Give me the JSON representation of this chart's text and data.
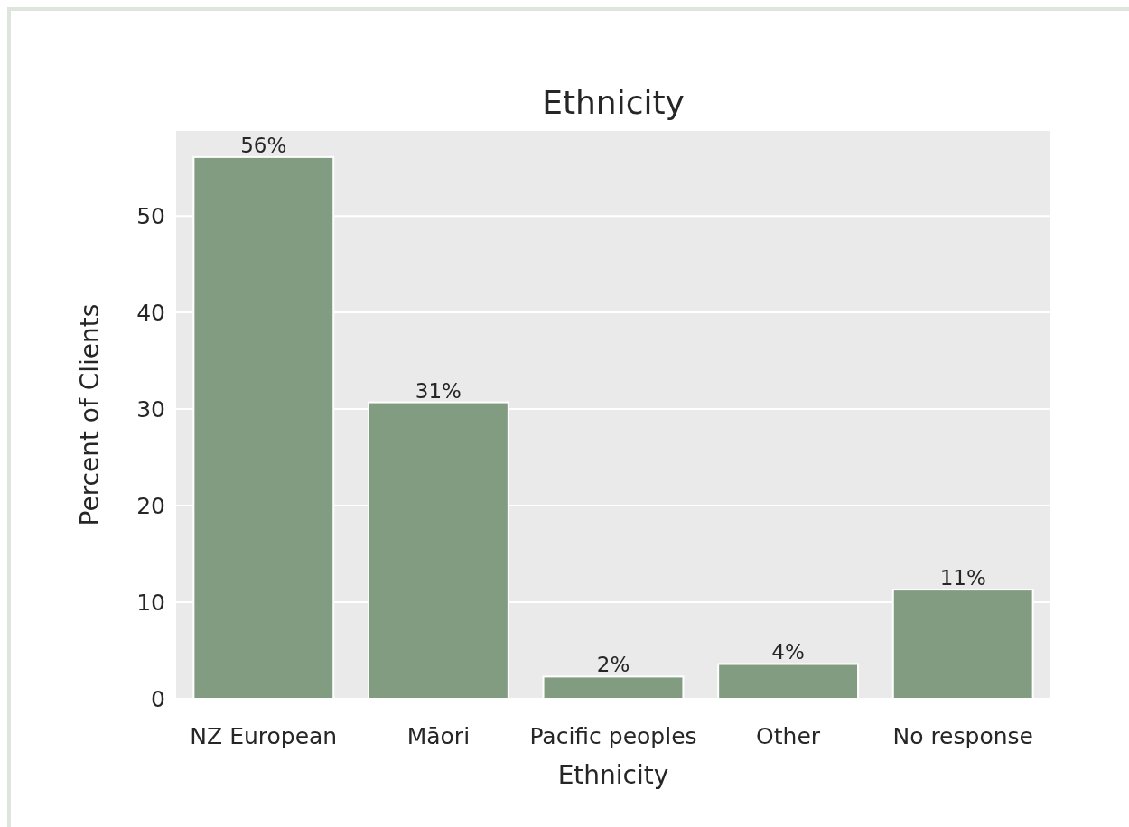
{
  "chart_data": {
    "type": "bar",
    "title": "Ethnicity",
    "xlabel": "Ethnicity",
    "ylabel": "Percent of Clients",
    "categories": [
      "NZ European",
      "Māori",
      "Pacific peoples",
      "Other",
      "No response"
    ],
    "values": [
      56.1,
      30.7,
      2.3,
      3.6,
      11.3
    ],
    "value_labels": [
      "56%",
      "31%",
      "2%",
      "4%",
      "11%"
    ],
    "color": "#819c80",
    "ylim": [
      0,
      58.8
    ],
    "yticks": [
      0,
      10,
      20,
      30,
      40,
      50
    ],
    "grid": "y"
  }
}
